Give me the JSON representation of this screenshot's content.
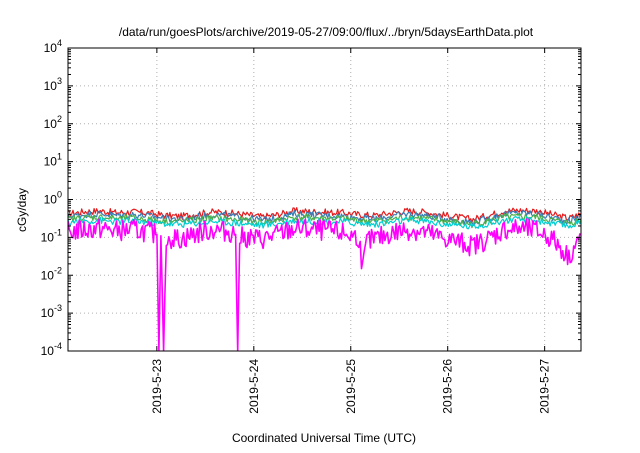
{
  "chart_data": {
    "type": "line",
    "title": "/data/run/goesPlots/archive/2019-05-27/09:00/flux/../bryn/5daysEarthData.plot",
    "xlabel": "Coordinated Universal Time (UTC)",
    "ylabel": "cGy/day",
    "yscale": "log",
    "ylim": [
      0.0001,
      10000
    ],
    "xlim": [
      "2019-05-22T02:00",
      "2019-05-27T09:00"
    ],
    "y_ticks": [
      {
        "value": 0.0001,
        "base": "10",
        "exp": "-4"
      },
      {
        "value": 0.001,
        "base": "10",
        "exp": "-3"
      },
      {
        "value": 0.01,
        "base": "10",
        "exp": "-2"
      },
      {
        "value": 0.1,
        "base": "10",
        "exp": "-1"
      },
      {
        "value": 1,
        "base": "10",
        "exp": "0"
      },
      {
        "value": 10,
        "base": "10",
        "exp": "1"
      },
      {
        "value": 100,
        "base": "10",
        "exp": "2"
      },
      {
        "value": 1000,
        "base": "10",
        "exp": "3"
      },
      {
        "value": 10000,
        "base": "10",
        "exp": "4"
      }
    ],
    "x_ticks": [
      {
        "value": "2019-05-23T00:00",
        "label": "2019-5-23"
      },
      {
        "value": "2019-05-24T00:00",
        "label": "2019-5-24"
      },
      {
        "value": "2019-05-25T00:00",
        "label": "2019-5-25"
      },
      {
        "value": "2019-05-26T00:00",
        "label": "2019-5-26"
      },
      {
        "value": "2019-05-27T00:00",
        "label": "2019-5-27"
      }
    ],
    "grid": true,
    "legend": "none",
    "series": [
      {
        "color": "#e41a1c",
        "x": [
          "2019-05-22T02:00",
          "2019-05-22T06:00",
          "2019-05-22T10:00",
          "2019-05-22T14:00",
          "2019-05-22T18:00",
          "2019-05-22T22:00",
          "2019-05-23T02:00",
          "2019-05-23T06:00",
          "2019-05-23T10:00",
          "2019-05-23T14:00",
          "2019-05-23T18:00",
          "2019-05-23T22:00",
          "2019-05-24T02:00",
          "2019-05-24T06:00",
          "2019-05-24T10:00",
          "2019-05-24T14:00",
          "2019-05-24T18:00",
          "2019-05-24T22:00",
          "2019-05-25T02:00",
          "2019-05-25T06:00",
          "2019-05-25T10:00",
          "2019-05-25T14:00",
          "2019-05-25T18:00",
          "2019-05-25T22:00",
          "2019-05-26T02:00",
          "2019-05-26T06:00",
          "2019-05-26T10:00",
          "2019-05-26T14:00",
          "2019-05-26T18:00",
          "2019-05-26T22:00",
          "2019-05-27T02:00",
          "2019-05-27T06:00",
          "2019-05-27T09:00"
        ],
        "values": [
          0.42,
          0.48,
          0.5,
          0.45,
          0.47,
          0.44,
          0.38,
          0.36,
          0.42,
          0.47,
          0.44,
          0.4,
          0.35,
          0.4,
          0.5,
          0.48,
          0.46,
          0.45,
          0.4,
          0.38,
          0.44,
          0.5,
          0.47,
          0.4,
          0.35,
          0.3,
          0.38,
          0.5,
          0.52,
          0.5,
          0.4,
          0.32,
          0.42
        ]
      },
      {
        "color": "#377eb8",
        "x": [
          "2019-05-22T02:00",
          "2019-05-22T06:00",
          "2019-05-22T10:00",
          "2019-05-22T14:00",
          "2019-05-22T18:00",
          "2019-05-22T22:00",
          "2019-05-23T02:00",
          "2019-05-23T06:00",
          "2019-05-23T10:00",
          "2019-05-23T14:00",
          "2019-05-23T18:00",
          "2019-05-23T22:00",
          "2019-05-24T02:00",
          "2019-05-24T06:00",
          "2019-05-24T10:00",
          "2019-05-24T14:00",
          "2019-05-24T18:00",
          "2019-05-24T22:00",
          "2019-05-25T02:00",
          "2019-05-25T06:00",
          "2019-05-25T10:00",
          "2019-05-25T14:00",
          "2019-05-25T18:00",
          "2019-05-25T22:00",
          "2019-05-26T02:00",
          "2019-05-26T06:00",
          "2019-05-26T10:00",
          "2019-05-26T14:00",
          "2019-05-26T18:00",
          "2019-05-26T22:00",
          "2019-05-27T02:00",
          "2019-05-27T06:00",
          "2019-05-27T09:00"
        ],
        "values": [
          0.36,
          0.4,
          0.42,
          0.38,
          0.4,
          0.37,
          0.32,
          0.3,
          0.35,
          0.4,
          0.37,
          0.33,
          0.29,
          0.33,
          0.42,
          0.4,
          0.38,
          0.37,
          0.33,
          0.31,
          0.36,
          0.42,
          0.39,
          0.33,
          0.29,
          0.25,
          0.31,
          0.42,
          0.44,
          0.42,
          0.33,
          0.27,
          0.35
        ]
      },
      {
        "color": "#4daf4a",
        "x": [
          "2019-05-22T02:00",
          "2019-05-22T06:00",
          "2019-05-22T10:00",
          "2019-05-22T14:00",
          "2019-05-22T18:00",
          "2019-05-22T22:00",
          "2019-05-23T02:00",
          "2019-05-23T06:00",
          "2019-05-23T10:00",
          "2019-05-23T14:00",
          "2019-05-23T18:00",
          "2019-05-23T22:00",
          "2019-05-24T02:00",
          "2019-05-24T06:00",
          "2019-05-24T10:00",
          "2019-05-24T14:00",
          "2019-05-24T18:00",
          "2019-05-24T22:00",
          "2019-05-25T02:00",
          "2019-05-25T06:00",
          "2019-05-25T10:00",
          "2019-05-25T14:00",
          "2019-05-25T18:00",
          "2019-05-25T22:00",
          "2019-05-26T02:00",
          "2019-05-26T06:00",
          "2019-05-26T10:00",
          "2019-05-26T14:00",
          "2019-05-26T18:00",
          "2019-05-26T22:00",
          "2019-05-27T02:00",
          "2019-05-27T06:00",
          "2019-05-27T09:00"
        ],
        "values": [
          0.3,
          0.33,
          0.34,
          0.31,
          0.32,
          0.3,
          0.27,
          0.26,
          0.29,
          0.32,
          0.3,
          0.28,
          0.25,
          0.28,
          0.34,
          0.33,
          0.32,
          0.31,
          0.28,
          0.27,
          0.3,
          0.34,
          0.32,
          0.28,
          0.25,
          0.22,
          0.27,
          0.34,
          0.35,
          0.34,
          0.28,
          0.24,
          0.29
        ]
      },
      {
        "color": "#00ced1",
        "x": [
          "2019-05-22T02:00",
          "2019-05-22T06:00",
          "2019-05-22T10:00",
          "2019-05-22T14:00",
          "2019-05-22T18:00",
          "2019-05-22T22:00",
          "2019-05-23T02:00",
          "2019-05-23T06:00",
          "2019-05-23T10:00",
          "2019-05-23T14:00",
          "2019-05-23T18:00",
          "2019-05-23T22:00",
          "2019-05-24T02:00",
          "2019-05-24T06:00",
          "2019-05-24T10:00",
          "2019-05-24T14:00",
          "2019-05-24T18:00",
          "2019-05-24T22:00",
          "2019-05-25T02:00",
          "2019-05-25T06:00",
          "2019-05-25T10:00",
          "2019-05-25T14:00",
          "2019-05-25T18:00",
          "2019-05-25T22:00",
          "2019-05-26T02:00",
          "2019-05-26T06:00",
          "2019-05-26T10:00",
          "2019-05-26T14:00",
          "2019-05-26T18:00",
          "2019-05-26T22:00",
          "2019-05-27T02:00",
          "2019-05-27T06:00",
          "2019-05-27T09:00"
        ],
        "values": [
          0.25,
          0.27,
          0.28,
          0.26,
          0.27,
          0.25,
          0.23,
          0.22,
          0.24,
          0.27,
          0.25,
          0.23,
          0.21,
          0.23,
          0.28,
          0.27,
          0.26,
          0.26,
          0.23,
          0.22,
          0.25,
          0.28,
          0.27,
          0.23,
          0.21,
          0.19,
          0.23,
          0.28,
          0.29,
          0.28,
          0.23,
          0.2,
          0.24
        ]
      },
      {
        "color": "#ff00ff",
        "x": [
          "2019-05-22T02:00",
          "2019-05-22T06:00",
          "2019-05-22T10:00",
          "2019-05-22T14:00",
          "2019-05-22T18:00",
          "2019-05-22T22:00",
          "2019-05-23T00:00",
          "2019-05-23T00:30",
          "2019-05-23T01:00",
          "2019-05-23T01:40",
          "2019-05-23T02:20",
          "2019-05-23T06:00",
          "2019-05-23T10:00",
          "2019-05-23T14:00",
          "2019-05-23T18:00",
          "2019-05-23T19:30",
          "2019-05-23T20:00",
          "2019-05-23T20:30",
          "2019-05-23T22:00",
          "2019-05-24T02:00",
          "2019-05-24T06:00",
          "2019-05-24T10:00",
          "2019-05-24T14:00",
          "2019-05-24T18:00",
          "2019-05-24T22:00",
          "2019-05-25T02:00",
          "2019-05-25T03:00",
          "2019-05-25T04:00",
          "2019-05-25T06:00",
          "2019-05-25T10:00",
          "2019-05-25T14:00",
          "2019-05-25T18:00",
          "2019-05-25T22:00",
          "2019-05-26T02:00",
          "2019-05-26T06:00",
          "2019-05-26T10:00",
          "2019-05-26T14:00",
          "2019-05-26T18:00",
          "2019-05-26T22:00",
          "2019-05-27T02:00",
          "2019-05-27T06:00",
          "2019-05-27T09:00"
        ],
        "values": [
          0.14,
          0.16,
          0.17,
          0.15,
          0.16,
          0.14,
          0.12,
          0.0001,
          0.11,
          0.0001,
          0.1,
          0.09,
          0.13,
          0.16,
          0.14,
          0.12,
          0.0001,
          0.1,
          0.1,
          0.09,
          0.12,
          0.17,
          0.16,
          0.15,
          0.13,
          0.1,
          0.015,
          0.08,
          0.09,
          0.13,
          0.16,
          0.14,
          0.1,
          0.08,
          0.06,
          0.09,
          0.16,
          0.17,
          0.15,
          0.09,
          0.03,
          0.12
        ]
      }
    ]
  }
}
